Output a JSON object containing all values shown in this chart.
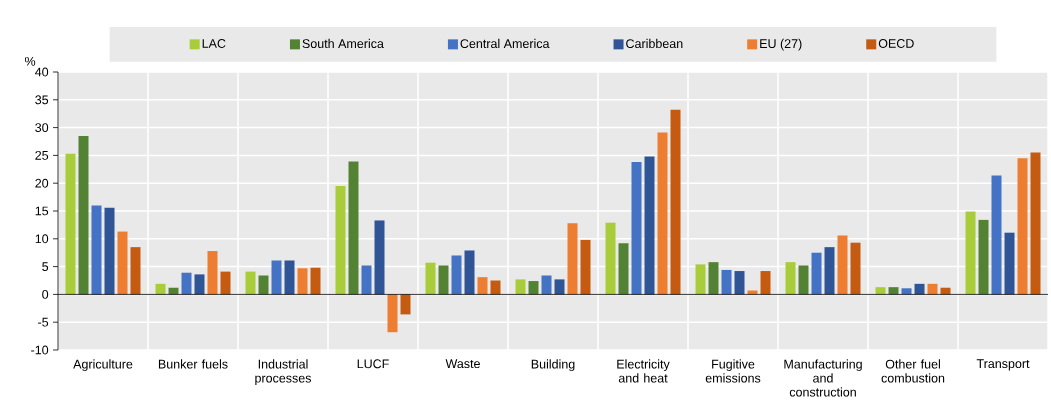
{
  "chart_data": {
    "type": "bar",
    "ylabel": "%",
    "categories": [
      "Agriculture",
      "Bunker fuels",
      "Industrial processes",
      "LUCF",
      "Waste",
      "Building",
      "Electricity and heat",
      "Fugitive emissions",
      "Manufacturing and construction",
      "Other fuel combustion",
      "Transport"
    ],
    "series": [
      {
        "name": "LAC",
        "color": "#a9cc3a",
        "values": [
          25.3,
          1.9,
          4.1,
          19.5,
          5.7,
          2.7,
          12.9,
          5.4,
          5.8,
          1.3,
          14.9
        ]
      },
      {
        "name": "South America",
        "color": "#548235",
        "values": [
          28.5,
          1.2,
          3.4,
          23.9,
          5.2,
          2.4,
          9.2,
          5.8,
          5.2,
          1.3,
          13.4
        ]
      },
      {
        "name": "Central America",
        "color": "#4472c4",
        "values": [
          16.0,
          3.9,
          6.1,
          5.2,
          7.0,
          3.4,
          23.8,
          4.4,
          7.5,
          1.1,
          21.4
        ]
      },
      {
        "name": "Caribbean",
        "color": "#2f5597",
        "values": [
          15.6,
          3.6,
          6.1,
          13.3,
          7.9,
          2.7,
          24.8,
          4.2,
          8.5,
          1.9,
          11.1
        ]
      },
      {
        "name": "EU (27)",
        "color": "#ed7d31",
        "values": [
          11.3,
          7.8,
          4.7,
          -6.8,
          3.1,
          12.8,
          29.1,
          0.7,
          10.6,
          1.9,
          24.5
        ]
      },
      {
        "name": "OECD",
        "color": "#c55a11",
        "values": [
          8.5,
          4.1,
          4.8,
          -3.6,
          2.5,
          9.8,
          33.2,
          4.2,
          9.3,
          1.2,
          25.5
        ]
      }
    ],
    "ylim": [
      -10,
      40
    ],
    "yticks": [
      -10,
      -5,
      0,
      5,
      10,
      15,
      20,
      25,
      30,
      35,
      40
    ],
    "grid": true,
    "legend": "top"
  }
}
